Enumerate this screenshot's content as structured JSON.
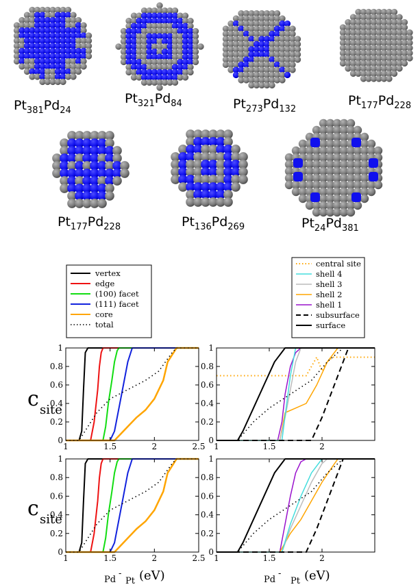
{
  "clusters": [
    {
      "label_main": "Pt",
      "sub1": "381",
      "mid": "Pd",
      "sub2": "24"
    },
    {
      "label_main": "Pt",
      "sub1": "321",
      "mid": "Pd",
      "sub2": "84"
    },
    {
      "label_main": "Pt",
      "sub1": "273",
      "mid": "Pd",
      "sub2": "132"
    },
    {
      "label_main": "Pt",
      "sub1": "177",
      "mid": "Pd",
      "sub2": "228"
    },
    {
      "label_main": "Pt",
      "sub1": "177",
      "mid": "Pd",
      "sub2": "228"
    },
    {
      "label_main": "Pt",
      "sub1": "136",
      "mid": "Pd",
      "sub2": "269"
    },
    {
      "label_main": "Pt",
      "sub1": "24",
      "mid": "Pd",
      "sub2": "381"
    }
  ],
  "colors": {
    "pt": "#7a7a7a",
    "pd": "#1010ee",
    "vertex": "#000000",
    "edge": "#ee1111",
    "facet100": "#11dd11",
    "facet111": "#1122dd",
    "core": "#ffa500",
    "shell4": "#44dddd",
    "shell3": "#bbbbbb",
    "shell2": "#ffa500",
    "shell1": "#9911cc",
    "central": "#ffa500"
  },
  "ylabel": {
    "main": "c",
    "sub": "site"
  },
  "xlabel": {
    "a": "Pd",
    "b": "-",
    "c": "Pt",
    "d": "(eV)"
  },
  "legend_left": {
    "vertex": "vertex",
    "edge": "edge",
    "facet100": "(100) facet",
    "facet111": "(111) facet",
    "core": "core",
    "total": "total"
  },
  "legend_right": {
    "central": "central site",
    "shell4": "shell 4",
    "shell3": "shell 3",
    "shell2": "shell 2",
    "shell1": "shell 1",
    "subsurface": "subsurface",
    "surface": "surface"
  },
  "chart_data": [
    {
      "type": "line",
      "panel": "top-left",
      "xlim": [
        1,
        2.5
      ],
      "ylim": [
        0,
        1
      ],
      "xticks": [
        "1",
        "1.5",
        "2",
        "2.5"
      ],
      "yticks": [
        "0",
        "0.2",
        "0.4",
        "0.6",
        "0.8",
        "1"
      ],
      "series": [
        {
          "name": "vertex",
          "x": [
            1.15,
            1.18,
            1.2,
            1.22,
            1.25
          ],
          "y": [
            0,
            0.1,
            0.55,
            0.95,
            1
          ]
        },
        {
          "name": "edge",
          "x": [
            1.28,
            1.32,
            1.36,
            1.38,
            1.4,
            1.42
          ],
          "y": [
            0,
            0.2,
            0.55,
            0.8,
            0.95,
            1
          ]
        },
        {
          "name": "(100) facet",
          "x": [
            1.42,
            1.45,
            1.48,
            1.52,
            1.55,
            1.58,
            1.6
          ],
          "y": [
            0,
            0.15,
            0.4,
            0.65,
            0.85,
            0.97,
            1
          ]
        },
        {
          "name": "(111) facet",
          "x": [
            1.5,
            1.55,
            1.6,
            1.65,
            1.7,
            1.75
          ],
          "y": [
            0,
            0.1,
            0.35,
            0.6,
            0.85,
            1
          ]
        },
        {
          "name": "core",
          "x": [
            1.55,
            1.6,
            1.7,
            1.8,
            1.9,
            2.0,
            2.1,
            2.15,
            2.25
          ],
          "y": [
            0,
            0.05,
            0.15,
            0.25,
            0.33,
            0.45,
            0.65,
            0.85,
            1
          ]
        },
        {
          "name": "total",
          "x": [
            1.15,
            1.25,
            1.35,
            1.5,
            1.7,
            1.9,
            2.05,
            2.2,
            2.25
          ],
          "y": [
            0,
            0.15,
            0.3,
            0.45,
            0.55,
            0.65,
            0.75,
            0.95,
            1
          ]
        }
      ]
    },
    {
      "type": "line",
      "panel": "top-right",
      "xlim": [
        1,
        2.5
      ],
      "ylim": [
        0,
        1
      ],
      "xticks": [
        "1",
        "1.5",
        "2"
      ],
      "yticks": [
        "0",
        "0.2",
        "0.4",
        "0.6",
        "0.8",
        "1"
      ],
      "series": [
        {
          "name": "central site",
          "x": [
            1.85,
            1.9,
            1.95,
            2.0,
            2.05,
            2.1
          ],
          "y": [
            0.7,
            0.8,
            0.9,
            0.75,
            0.85,
            0.9
          ]
        },
        {
          "name": "shell 1",
          "x": [
            1.58,
            1.62,
            1.65,
            1.7,
            1.75,
            1.8
          ],
          "y": [
            0,
            0.2,
            0.5,
            0.8,
            0.95,
            1
          ]
        },
        {
          "name": "shell 2",
          "x": [
            1.6,
            1.65,
            1.75,
            1.85,
            1.95,
            2.05,
            2.15
          ],
          "y": [
            0,
            0.3,
            0.35,
            0.4,
            0.6,
            0.85,
            1
          ]
        },
        {
          "name": "shell 3",
          "x": [
            1.6,
            1.65,
            1.7,
            1.75,
            1.8
          ],
          "y": [
            0,
            0.25,
            0.55,
            0.85,
            1
          ]
        },
        {
          "name": "shell 4",
          "x": [
            1.62,
            1.66,
            1.7,
            1.75
          ],
          "y": [
            0,
            0.35,
            0.7,
            1
          ]
        },
        {
          "name": "subsurface",
          "x": [
            1.9,
            2.0,
            2.1,
            2.2,
            2.25
          ],
          "y": [
            0,
            0.25,
            0.55,
            0.85,
            1
          ]
        },
        {
          "name": "surface",
          "x": [
            1.2,
            1.25,
            1.35,
            1.45,
            1.55,
            1.65
          ],
          "y": [
            0,
            0.1,
            0.35,
            0.6,
            0.85,
            1
          ]
        },
        {
          "name": "total",
          "x": [
            1.2,
            1.35,
            1.5,
            1.7,
            1.9,
            2.05,
            2.2
          ],
          "y": [
            0,
            0.2,
            0.35,
            0.5,
            0.65,
            0.85,
            1
          ]
        }
      ]
    },
    {
      "type": "line",
      "panel": "bottom-left",
      "xlim": [
        1,
        2.5
      ],
      "ylim": [
        0,
        1
      ],
      "xticks": [
        "1",
        "1.5",
        "2",
        "2.5"
      ],
      "yticks": [
        "0",
        "0.2",
        "0.4",
        "0.6",
        "0.8",
        "1"
      ],
      "series": [
        {
          "name": "vertex",
          "x": [
            1.15,
            1.18,
            1.2,
            1.22,
            1.25
          ],
          "y": [
            0,
            0.1,
            0.55,
            0.95,
            1
          ]
        },
        {
          "name": "edge",
          "x": [
            1.28,
            1.32,
            1.36,
            1.38,
            1.4,
            1.42
          ],
          "y": [
            0,
            0.2,
            0.55,
            0.8,
            0.95,
            1
          ]
        },
        {
          "name": "(100) facet",
          "x": [
            1.42,
            1.45,
            1.48,
            1.52,
            1.55,
            1.58,
            1.6
          ],
          "y": [
            0,
            0.15,
            0.4,
            0.65,
            0.85,
            0.97,
            1
          ]
        },
        {
          "name": "(111) facet",
          "x": [
            1.5,
            1.55,
            1.6,
            1.65,
            1.7,
            1.75
          ],
          "y": [
            0,
            0.1,
            0.35,
            0.6,
            0.85,
            1
          ]
        },
        {
          "name": "core",
          "x": [
            1.55,
            1.6,
            1.7,
            1.8,
            1.9,
            2.0,
            2.1,
            2.15,
            2.25
          ],
          "y": [
            0,
            0.05,
            0.15,
            0.25,
            0.33,
            0.45,
            0.65,
            0.85,
            1
          ]
        },
        {
          "name": "total",
          "x": [
            1.15,
            1.25,
            1.35,
            1.5,
            1.7,
            1.9,
            2.05,
            2.2,
            2.25
          ],
          "y": [
            0,
            0.15,
            0.3,
            0.45,
            0.55,
            0.65,
            0.75,
            0.95,
            1
          ]
        }
      ]
    },
    {
      "type": "line",
      "panel": "bottom-right",
      "xlim": [
        1,
        2.5
      ],
      "ylim": [
        0,
        1
      ],
      "xticks": [
        "1",
        "1.5",
        "2"
      ],
      "yticks": [
        "0",
        "0.2",
        "0.4",
        "0.6",
        "0.8",
        "1"
      ],
      "series": [
        {
          "name": "shell 1",
          "x": [
            1.6,
            1.65,
            1.7,
            1.75,
            1.8,
            1.85
          ],
          "y": [
            0,
            0.3,
            0.6,
            0.85,
            0.97,
            1
          ]
        },
        {
          "name": "shell 2",
          "x": [
            1.6,
            1.7,
            1.8,
            1.9,
            2.0,
            2.1,
            2.15
          ],
          "y": [
            0,
            0.2,
            0.35,
            0.55,
            0.75,
            0.92,
            1
          ]
        },
        {
          "name": "shell 3",
          "x": [
            1.62,
            1.7,
            1.8,
            1.9,
            2.0,
            2.05
          ],
          "y": [
            0,
            0.25,
            0.5,
            0.75,
            0.95,
            1
          ]
        },
        {
          "name": "shell 4",
          "x": [
            1.62,
            1.7,
            1.8,
            1.9,
            2.0
          ],
          "y": [
            0,
            0.3,
            0.6,
            0.85,
            1
          ]
        },
        {
          "name": "subsurface",
          "x": [
            1.85,
            1.95,
            2.05,
            2.15,
            2.2
          ],
          "y": [
            0,
            0.25,
            0.55,
            0.85,
            1
          ]
        },
        {
          "name": "surface",
          "x": [
            1.2,
            1.25,
            1.35,
            1.45,
            1.55,
            1.65
          ],
          "y": [
            0,
            0.1,
            0.35,
            0.6,
            0.85,
            1
          ]
        },
        {
          "name": "total",
          "x": [
            1.2,
            1.35,
            1.5,
            1.7,
            1.9,
            2.05,
            2.2
          ],
          "y": [
            0,
            0.2,
            0.35,
            0.5,
            0.65,
            0.85,
            1
          ]
        }
      ]
    }
  ]
}
